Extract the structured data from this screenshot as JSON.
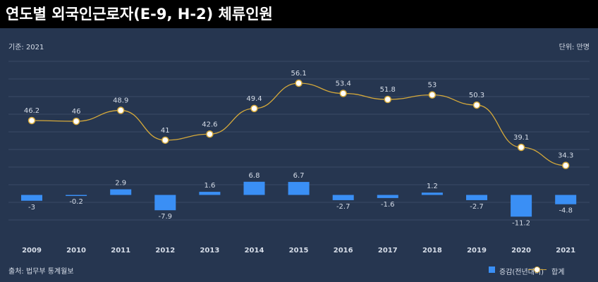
{
  "title": "연도별 외국인근로자(E-9, H-2) 체류인원",
  "basis": "기준: 2021",
  "unit": "단위: 만명",
  "source": "출처: 법무부 통계월보",
  "legend": {
    "bar": "증감(전년대비)",
    "line": "합계"
  },
  "colors": {
    "background": "#263650",
    "bar": "#3a8ff5",
    "line": "#d5a93a",
    "text": "#d6dde8"
  },
  "chart_data": {
    "type": "bar+line",
    "categories": [
      "2009",
      "2010",
      "2011",
      "2012",
      "2013",
      "2014",
      "2015",
      "2016",
      "2017",
      "2018",
      "2019",
      "2020",
      "2021"
    ],
    "series": [
      {
        "name": "합계",
        "type": "line",
        "values": [
          46.2,
          46,
          48.9,
          41,
          42.6,
          49.4,
          56.1,
          53.4,
          51.8,
          53,
          50.3,
          39.1,
          34.3
        ]
      },
      {
        "name": "증감(전년대비)",
        "type": "bar",
        "values": [
          -3,
          -0.2,
          2.9,
          -7.9,
          1.6,
          6.8,
          6.7,
          -2.7,
          -1.6,
          1.2,
          -2.7,
          -11.2,
          -4.8
        ]
      }
    ],
    "grid": true,
    "legend_position": "bottom-right"
  }
}
